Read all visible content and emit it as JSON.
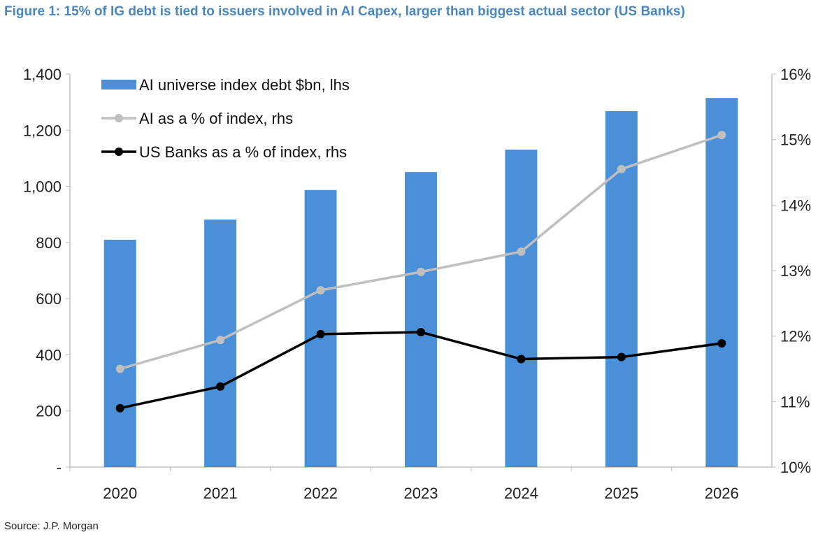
{
  "chart_data": {
    "type": "bar+line",
    "title": "Figure 1: 15% of IG debt is tied to issuers involved in AI Capex, larger than biggest actual sector (US Banks)",
    "source": "Source: J.P. Morgan",
    "categories": [
      "2020",
      "2021",
      "2022",
      "2023",
      "2024",
      "2025",
      "2026"
    ],
    "series": [
      {
        "name": "AI universe index debt $bn, lhs",
        "type": "bar",
        "axis": "left",
        "color": "#4a90d9",
        "values": [
          810,
          882,
          987,
          1051,
          1131,
          1268,
          1315
        ]
      },
      {
        "name": "AI as a % of index, rhs",
        "type": "line",
        "axis": "right",
        "color": "#bfbfbf",
        "values": [
          11.5,
          11.94,
          12.7,
          12.98,
          13.29,
          14.55,
          15.07
        ]
      },
      {
        "name": "US Banks as a % of index, rhs",
        "type": "line",
        "axis": "right",
        "color": "#000000",
        "values": [
          10.9,
          11.23,
          12.03,
          12.06,
          11.65,
          11.68,
          11.89
        ]
      }
    ],
    "left_axis": {
      "ylim": [
        0,
        1400
      ],
      "ticks": [
        "-",
        "200",
        "400",
        "600",
        "800",
        "1,000",
        "1,200",
        "1,400"
      ]
    },
    "right_axis": {
      "ylim": [
        10,
        16
      ],
      "ticks": [
        "10%",
        "11%",
        "12%",
        "13%",
        "14%",
        "15%",
        "16%"
      ]
    },
    "legend": "top-left",
    "grid": false
  }
}
